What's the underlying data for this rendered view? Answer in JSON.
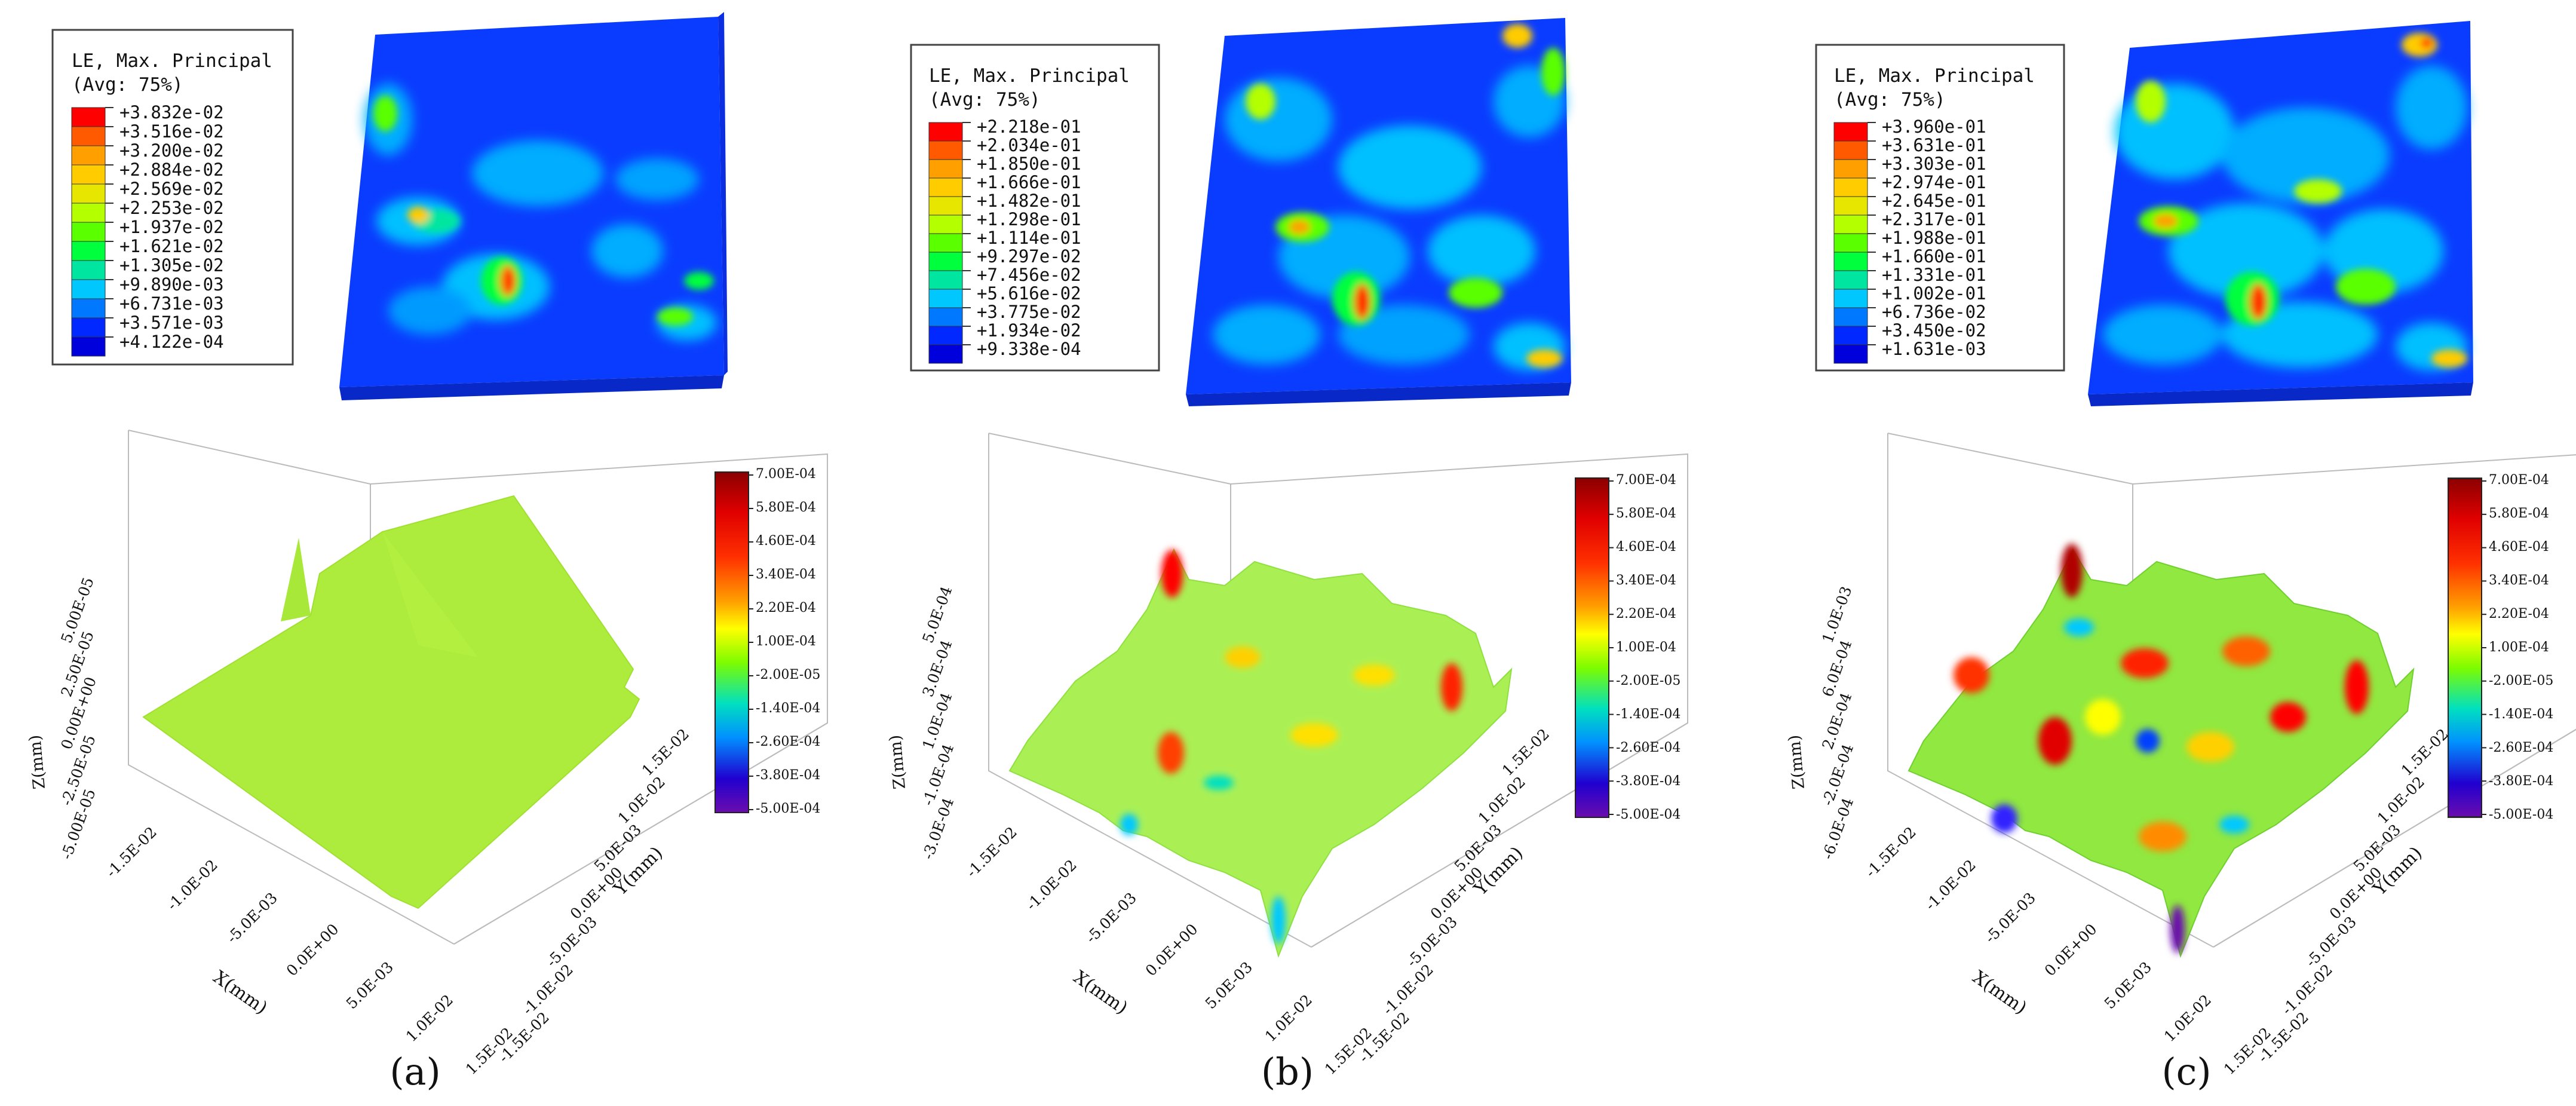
{
  "panels": [
    {
      "label": "(a)",
      "legend": {
        "title_line1": "LE, Max. Principal",
        "title_line2": "(Avg: 75%)",
        "values": [
          "+3.832e-02",
          "+3.516e-02",
          "+3.200e-02",
          "+2.884e-02",
          "+2.569e-02",
          "+2.253e-02",
          "+1.937e-02",
          "+1.621e-02",
          "+1.305e-02",
          "+9.890e-03",
          "+6.731e-03",
          "+3.571e-03",
          "+4.122e-04"
        ]
      },
      "surface": {
        "z_ticks": [
          "5.00E-05",
          "2.50E-05",
          "0.00E+00",
          "-2.50E-05",
          "-5.00E-05"
        ],
        "z_label": "Z(mm)",
        "x_ticks": [
          "-1.5E-02",
          "-1.0E-02",
          "-5.0E-03",
          "0.0E+00",
          "5.0E-03",
          "1.0E-02",
          "1.5E-02"
        ],
        "x_label": "X(mm)",
        "y_ticks": [
          "1.5E-02",
          "1.0E-02",
          "5.0E-03",
          "0.0E+00",
          "-5.0E-03",
          "-1.0E-02",
          "-1.5E-02"
        ],
        "y_label": "Y(mm)"
      },
      "colorbar": [
        "7.00E-04",
        "5.80E-04",
        "4.60E-04",
        "3.40E-04",
        "2.20E-04",
        "1.00E-04",
        "-2.00E-05",
        "-1.40E-04",
        "-2.60E-04",
        "-3.80E-04",
        "-5.00E-04"
      ]
    },
    {
      "label": "(b)",
      "legend": {
        "title_line1": "LE, Max. Principal",
        "title_line2": "(Avg: 75%)",
        "values": [
          "+2.218e-01",
          "+2.034e-01",
          "+1.850e-01",
          "+1.666e-01",
          "+1.482e-01",
          "+1.298e-01",
          "+1.114e-01",
          "+9.297e-02",
          "+7.456e-02",
          "+5.616e-02",
          "+3.775e-02",
          "+1.934e-02",
          "+9.338e-04"
        ]
      },
      "surface": {
        "z_ticks": [
          "5.0E-04",
          "3.0E-04",
          "1.0E-04",
          "-1.0E-04",
          "-3.0E-04"
        ],
        "z_label": "Z(mm)",
        "x_ticks": [
          "-1.5E-02",
          "-1.0E-02",
          "-5.0E-03",
          "0.0E+00",
          "5.0E-03",
          "1.0E-02",
          "1.5E-02"
        ],
        "x_label": "X(mm)",
        "y_ticks": [
          "1.5E-02",
          "1.0E-02",
          "5.0E-03",
          "0.0E+00",
          "-5.0E-03",
          "-1.0E-02",
          "-1.5E-02"
        ],
        "y_label": "Y(mm)"
      },
      "colorbar": [
        "7.00E-04",
        "5.80E-04",
        "4.60E-04",
        "3.40E-04",
        "2.20E-04",
        "1.00E-04",
        "-2.00E-05",
        "-1.40E-04",
        "-2.60E-04",
        "-3.80E-04",
        "-5.00E-04"
      ]
    },
    {
      "label": "(c)",
      "legend": {
        "title_line1": "LE, Max. Principal",
        "title_line2": "(Avg: 75%)",
        "values": [
          "+3.960e-01",
          "+3.631e-01",
          "+3.303e-01",
          "+2.974e-01",
          "+2.645e-01",
          "+2.317e-01",
          "+1.988e-01",
          "+1.660e-01",
          "+1.331e-01",
          "+1.002e-01",
          "+6.736e-02",
          "+3.450e-02",
          "+1.631e-03"
        ]
      },
      "surface": {
        "z_ticks": [
          "1.0E-03",
          "6.0E-04",
          "2.0E-04",
          "-2.0E-04",
          "-6.0E-04"
        ],
        "z_label": "Z(mm)",
        "x_ticks": [
          "-1.5E-02",
          "-1.0E-02",
          "-5.0E-03",
          "0.0E+00",
          "5.0E-03",
          "1.0E-02",
          "1.5E-02"
        ],
        "x_label": "X(mm)",
        "y_ticks": [
          "1.5E-02",
          "1.0E-02",
          "5.0E-03",
          "0.0E+00",
          "-5.0E-03",
          "-1.0E-02",
          "-1.5E-02"
        ],
        "y_label": "Y(mm)"
      },
      "colorbar": [
        "7.00E-04",
        "5.80E-04",
        "4.60E-04",
        "3.40E-04",
        "2.20E-04",
        "1.00E-04",
        "-2.00E-05",
        "-1.40E-04",
        "-2.60E-04",
        "-3.80E-04",
        "-5.00E-04"
      ]
    }
  ],
  "colors": {
    "contour_scale": [
      "#ff0000",
      "#ff5a00",
      "#ffa000",
      "#ffcc00",
      "#e6e600",
      "#b4ff00",
      "#5aff00",
      "#00ff3c",
      "#00e6a0",
      "#00c8ff",
      "#0078ff",
      "#0028ff",
      "#0000dc"
    ],
    "colorbar_scale": [
      "#8b0000",
      "#ff0000",
      "#ff8c00",
      "#ffff00",
      "#7cfc00",
      "#00c8ff",
      "#0000ff",
      "#6a0dad"
    ]
  }
}
